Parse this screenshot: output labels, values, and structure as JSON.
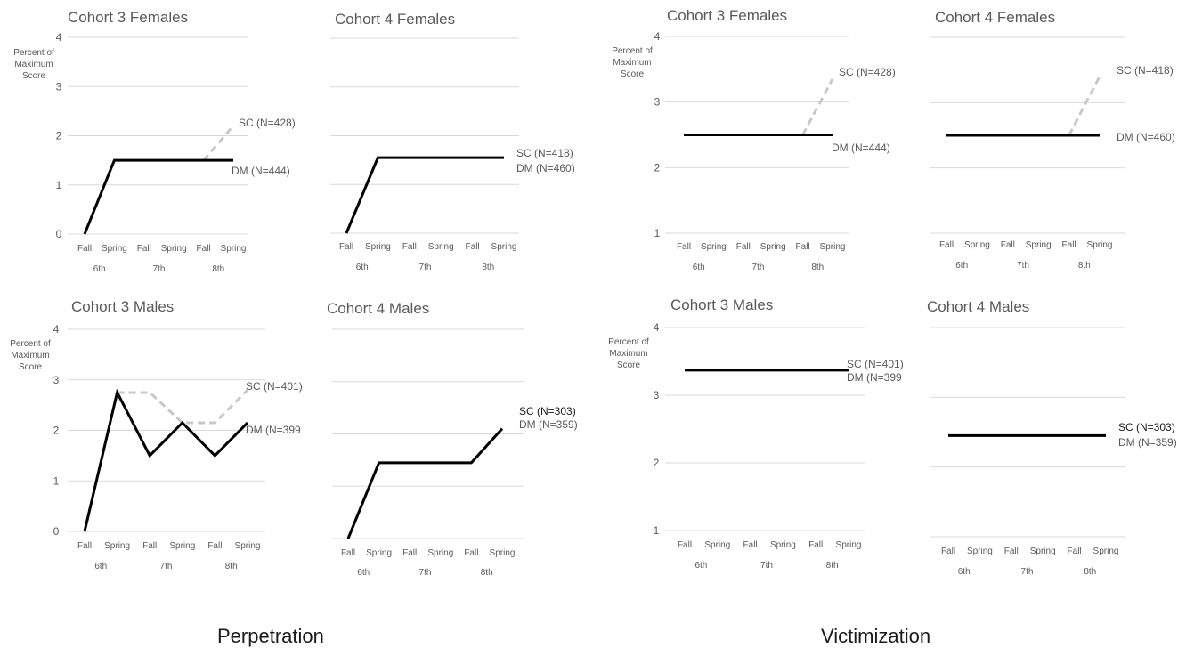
{
  "sections": [
    {
      "label": "Perpetration"
    },
    {
      "label": "Victimization"
    }
  ],
  "x_labels": [
    "Fall",
    "Spring",
    "Fall",
    "Spring",
    "Fall",
    "Spring"
  ],
  "grade_labels": [
    "6th",
    "7th",
    "8th"
  ],
  "colors": {
    "DM": "#000000",
    "SC": "#c8c8c8",
    "grid": "#d9d9d9",
    "text": "#595959"
  },
  "chart_data": [
    {
      "type": "line",
      "section": "Perpetration",
      "title": "Cohort 3 Females",
      "ylabel": "Percent of Maximum Score",
      "ylim": [
        0,
        4
      ],
      "yticks": [
        0,
        1,
        2,
        3,
        4
      ],
      "categories": [
        "Fall",
        "Spring",
        "Fall",
        "Spring",
        "Fall",
        "Spring"
      ],
      "groups": [
        "6th",
        "7th",
        "8th"
      ],
      "grid": true,
      "series": [
        {
          "name": "SC (N=428)",
          "style": "dashed",
          "values": [
            null,
            null,
            null,
            null,
            1.5,
            2.2
          ]
        },
        {
          "name": "DM (N=444)",
          "style": "solid",
          "values": [
            0,
            1.5,
            1.5,
            1.5,
            1.5,
            1.5
          ]
        }
      ]
    },
    {
      "type": "line",
      "section": "Perpetration",
      "title": "Cohort 4 Females",
      "ylabel": "",
      "ylim": [
        0,
        4
      ],
      "yticks": [],
      "hideTicks": true,
      "categories": [
        "Fall",
        "Spring",
        "Fall",
        "Spring",
        "Fall",
        "Spring"
      ],
      "groups": [
        "6th",
        "7th",
        "8th"
      ],
      "grid": true,
      "series": [
        {
          "name": "SC (N=418)",
          "style": "dashed",
          "values": [
            null,
            null,
            null,
            null,
            null,
            null
          ]
        },
        {
          "name": "DM (N=460)",
          "style": "solid",
          "values": [
            0,
            1.55,
            1.55,
            1.55,
            1.55,
            1.55
          ]
        }
      ]
    },
    {
      "type": "line",
      "section": "Victimization",
      "title": "Cohort 3 Females",
      "ylabel": "Percent of Maximum Score",
      "ylim": [
        1,
        4
      ],
      "yticks": [
        1,
        2,
        3,
        4
      ],
      "categories": [
        "Fall",
        "Spring",
        "Fall",
        "Spring",
        "Fall",
        "Spring"
      ],
      "groups": [
        "6th",
        "7th",
        "8th"
      ],
      "grid": true,
      "series": [
        {
          "name": "SC (N=428)",
          "style": "dashed",
          "values": [
            null,
            null,
            null,
            null,
            2.5,
            3.35
          ]
        },
        {
          "name": "DM (N=444)",
          "style": "solid",
          "values": [
            2.5,
            2.5,
            2.5,
            2.5,
            2.5,
            2.5
          ]
        }
      ]
    },
    {
      "type": "line",
      "section": "Victimization",
      "title": "Cohort 4 Females",
      "ylabel": "",
      "ylim": [
        1,
        4
      ],
      "yticks": [],
      "hideTicks": true,
      "categories": [
        "Fall",
        "Spring",
        "Fall",
        "Spring",
        "Fall",
        "Spring"
      ],
      "groups": [
        "6th",
        "7th",
        "8th"
      ],
      "grid": true,
      "series": [
        {
          "name": "SC (N=418)",
          "style": "dashed",
          "values": [
            null,
            null,
            null,
            null,
            2.5,
            3.4
          ]
        },
        {
          "name": "DM (N=460)",
          "style": "solid",
          "values": [
            2.5,
            2.5,
            2.5,
            2.5,
            2.5,
            2.5
          ]
        }
      ]
    },
    {
      "type": "line",
      "section": "Perpetration",
      "title": "Cohort 3 Males",
      "ylabel": "Percent of Maximum Score",
      "ylim": [
        0,
        4
      ],
      "yticks": [
        0,
        1,
        2,
        3,
        4
      ],
      "categories": [
        "Fall",
        "Spring",
        "Fall",
        "Spring",
        "Fall",
        "Spring"
      ],
      "groups": [
        "6th",
        "7th",
        "8th"
      ],
      "grid": true,
      "series": [
        {
          "name": "SC (N=401)",
          "style": "dashed",
          "values": [
            null,
            2.75,
            2.75,
            2.15,
            2.15,
            2.8
          ]
        },
        {
          "name": "DM (N=399",
          "style": "solid",
          "values": [
            0,
            2.75,
            1.5,
            2.15,
            1.5,
            2.15
          ]
        }
      ]
    },
    {
      "type": "line",
      "section": "Perpetration",
      "title": "Cohort 4 Males",
      "ylabel": "",
      "ylim": [
        0,
        4
      ],
      "yticks": [],
      "hideTicks": true,
      "categories": [
        "Fall",
        "Spring",
        "Fall",
        "Spring",
        "Fall",
        "Spring"
      ],
      "groups": [
        "6th",
        "7th",
        "8th"
      ],
      "grid": true,
      "series": [
        {
          "name": "SC (N=303)",
          "style": "dashed",
          "values": [
            null,
            null,
            null,
            null,
            null,
            null
          ]
        },
        {
          "name": "DM (N=359)",
          "style": "solid",
          "values": [
            0,
            1.45,
            1.45,
            1.45,
            1.45,
            2.1
          ]
        }
      ]
    },
    {
      "type": "line",
      "section": "Victimization",
      "title": "Cohort 3 Males",
      "ylabel": "Percent of Maximum Score",
      "ylim": [
        1,
        4
      ],
      "yticks": [
        1,
        2,
        3,
        4
      ],
      "categories": [
        "Fall",
        "Spring",
        "Fall",
        "Spring",
        "Fall",
        "Spring"
      ],
      "groups": [
        "6th",
        "7th",
        "8th"
      ],
      "grid": true,
      "series": [
        {
          "name": "SC (N=401)",
          "style": "dashed",
          "values": [
            null,
            null,
            null,
            null,
            null,
            null
          ]
        },
        {
          "name": "DM (N=399",
          "style": "solid",
          "values": [
            3.37,
            3.37,
            3.37,
            3.37,
            3.37,
            3.37
          ]
        }
      ]
    },
    {
      "type": "line",
      "section": "Victimization",
      "title": "Cohort 4 Males",
      "ylabel": "",
      "ylim": [
        1,
        4
      ],
      "yticks": [],
      "hideTicks": true,
      "categories": [
        "Fall",
        "Spring",
        "Fall",
        "Spring",
        "Fall",
        "Spring"
      ],
      "groups": [
        "6th",
        "7th",
        "8th"
      ],
      "grid": true,
      "series": [
        {
          "name": "SC (N=303)",
          "style": "dashed",
          "values": [
            null,
            null,
            null,
            null,
            null,
            null
          ]
        },
        {
          "name": "DM (N=359)",
          "style": "solid",
          "values": [
            2.45,
            2.45,
            2.45,
            2.45,
            2.45,
            2.45
          ]
        }
      ]
    }
  ]
}
